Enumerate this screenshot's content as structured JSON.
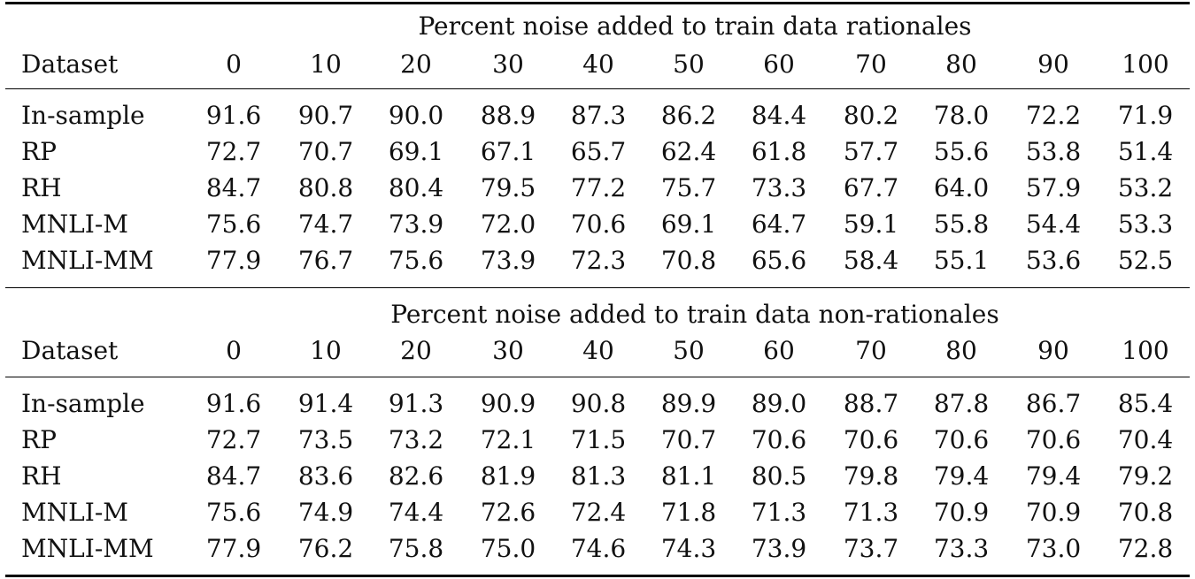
{
  "table": {
    "columns": [
      "0",
      "10",
      "20",
      "30",
      "40",
      "50",
      "60",
      "70",
      "80",
      "90",
      "100"
    ],
    "header_label": "Dataset",
    "sections": [
      {
        "caption": "Percent noise added to train data rationales",
        "rows": [
          {
            "dataset": "In-sample",
            "values": [
              "91.6",
              "90.7",
              "90.0",
              "88.9",
              "87.3",
              "86.2",
              "84.4",
              "80.2",
              "78.0",
              "72.2",
              "71.9"
            ]
          },
          {
            "dataset": "RP",
            "values": [
              "72.7",
              "70.7",
              "69.1",
              "67.1",
              "65.7",
              "62.4",
              "61.8",
              "57.7",
              "55.6",
              "53.8",
              "51.4"
            ]
          },
          {
            "dataset": "RH",
            "values": [
              "84.7",
              "80.8",
              "80.4",
              "79.5",
              "77.2",
              "75.7",
              "73.3",
              "67.7",
              "64.0",
              "57.9",
              "53.2"
            ]
          },
          {
            "dataset": "MNLI-M",
            "values": [
              "75.6",
              "74.7",
              "73.9",
              "72.0",
              "70.6",
              "69.1",
              "64.7",
              "59.1",
              "55.8",
              "54.4",
              "53.3"
            ]
          },
          {
            "dataset": "MNLI-MM",
            "values": [
              "77.9",
              "76.7",
              "75.6",
              "73.9",
              "72.3",
              "70.8",
              "65.6",
              "58.4",
              "55.1",
              "53.6",
              "52.5"
            ]
          }
        ]
      },
      {
        "caption": "Percent noise added to train data non-rationales",
        "rows": [
          {
            "dataset": "In-sample",
            "values": [
              "91.6",
              "91.4",
              "91.3",
              "90.9",
              "90.8",
              "89.9",
              "89.0",
              "88.7",
              "87.8",
              "86.7",
              "85.4"
            ]
          },
          {
            "dataset": "RP",
            "values": [
              "72.7",
              "73.5",
              "73.2",
              "72.1",
              "71.5",
              "70.7",
              "70.6",
              "70.6",
              "70.6",
              "70.6",
              "70.4"
            ]
          },
          {
            "dataset": "RH",
            "values": [
              "84.7",
              "83.6",
              "82.6",
              "81.9",
              "81.3",
              "81.1",
              "80.5",
              "79.8",
              "79.4",
              "79.4",
              "79.2"
            ]
          },
          {
            "dataset": "MNLI-M",
            "values": [
              "75.6",
              "74.9",
              "74.4",
              "72.6",
              "72.4",
              "71.8",
              "71.3",
              "71.3",
              "70.9",
              "70.9",
              "70.8"
            ]
          },
          {
            "dataset": "MNLI-MM",
            "values": [
              "77.9",
              "76.2",
              "75.8",
              "75.0",
              "74.6",
              "74.3",
              "73.9",
              "73.7",
              "73.3",
              "73.0",
              "72.8"
            ]
          }
        ]
      }
    ]
  }
}
